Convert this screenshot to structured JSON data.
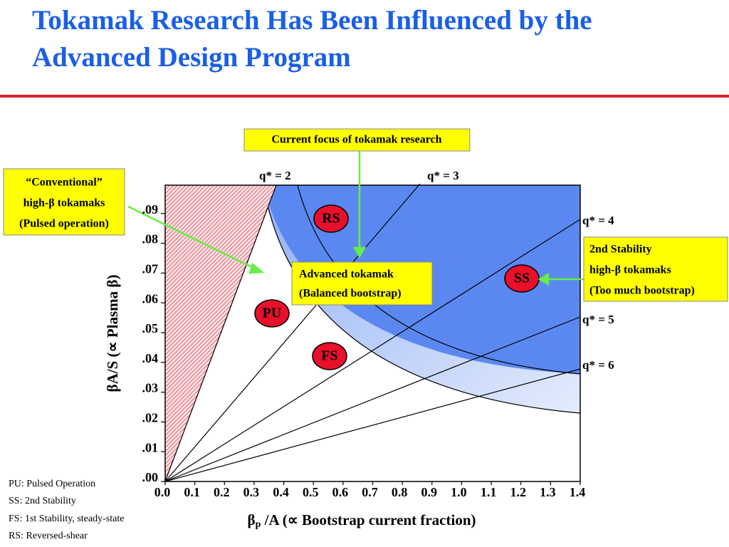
{
  "title": [
    "Tokamak Research Has Been Influenced by the",
    "Advanced Design Program"
  ],
  "chart_data": {
    "type": "region",
    "xlim": [
      0,
      1.4
    ],
    "ylim": [
      0,
      0.1
    ],
    "xticks": [
      {
        "value": 0,
        "label": "0.0"
      },
      0.1,
      0.2,
      0.3,
      0.4,
      0.5,
      0.6,
      0.7,
      0.8,
      0.9,
      {
        "value": 1,
        "label": "1.0"
      },
      1.1,
      1.2,
      1.3,
      1.4
    ],
    "yticks": [
      {
        "value": 0,
        "label": ".00"
      },
      {
        "value": 0.01,
        "label": ".01"
      },
      {
        "value": 0.02,
        "label": ".02"
      },
      {
        "value": 0.03,
        "label": ".03"
      },
      {
        "value": 0.04,
        "label": ".04"
      },
      {
        "value": 0.05,
        "label": ".05"
      },
      {
        "value": 0.06,
        "label": ".06"
      },
      {
        "value": 0.07,
        "label": ".07"
      },
      {
        "value": 0.08,
        "label": ".08"
      },
      {
        "value": 0.09,
        "label": ".09"
      }
    ],
    "ylabel": "βA/S (∝ Plasma β)",
    "xlabel": {
      "symbol": "β",
      "subscript": "p",
      "text": " /A (∝ Bootstrap current fraction)"
    },
    "lines": [
      "q* = 2",
      "q* = 3",
      "q* = 4",
      "q* = 5",
      "q* = 6"
    ],
    "regions": [
      "RS",
      "PU",
      "SS",
      "FS"
    ],
    "annotations": [
      "Current focus of tokamak research",
      [
        "“Conventional”",
        "high-β tokamaks",
        "(Pulsed operation)"
      ],
      [
        "Advanced tokamak",
        "(Balanced bootstrap)"
      ],
      [
        "2nd Stability",
        "high-β  tokamaks",
        "(Too much bootstrap)"
      ]
    ]
  },
  "notes": [
    "PU: Pulsed Operation",
    "SS: 2nd Stability",
    "FS: 1st Stability, steady-state",
    "RS: Reversed-shear"
  ]
}
